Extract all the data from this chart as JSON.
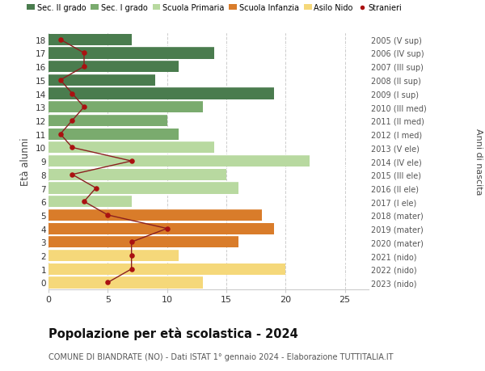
{
  "ages": [
    18,
    17,
    16,
    15,
    14,
    13,
    12,
    11,
    10,
    9,
    8,
    7,
    6,
    5,
    4,
    3,
    2,
    1,
    0
  ],
  "years_labels": [
    "2005 (V sup)",
    "2006 (IV sup)",
    "2007 (III sup)",
    "2008 (II sup)",
    "2009 (I sup)",
    "2010 (III med)",
    "2011 (II med)",
    "2012 (I med)",
    "2013 (V ele)",
    "2014 (IV ele)",
    "2015 (III ele)",
    "2016 (II ele)",
    "2017 (I ele)",
    "2018 (mater)",
    "2019 (mater)",
    "2020 (mater)",
    "2021 (nido)",
    "2022 (nido)",
    "2023 (nido)"
  ],
  "bar_values": [
    7,
    14,
    11,
    9,
    19,
    13,
    10,
    11,
    14,
    22,
    15,
    16,
    7,
    18,
    19,
    16,
    11,
    20,
    13
  ],
  "stranieri_values": [
    1,
    3,
    3,
    1,
    2,
    3,
    2,
    1,
    2,
    7,
    2,
    4,
    3,
    5,
    10,
    7,
    7,
    7,
    5
  ],
  "bar_colors": [
    "#4a7c4e",
    "#4a7c4e",
    "#4a7c4e",
    "#4a7c4e",
    "#4a7c4e",
    "#7aab6e",
    "#7aab6e",
    "#7aab6e",
    "#b8d9a0",
    "#b8d9a0",
    "#b8d9a0",
    "#b8d9a0",
    "#b8d9a0",
    "#d97c2a",
    "#d97c2a",
    "#d97c2a",
    "#f5d87a",
    "#f5d87a",
    "#f5d87a"
  ],
  "legend_labels": [
    "Sec. II grado",
    "Sec. I grado",
    "Scuola Primaria",
    "Scuola Infanzia",
    "Asilo Nido",
    "Stranieri"
  ],
  "legend_colors": [
    "#4a7c4e",
    "#7aab6e",
    "#b8d9a0",
    "#d97c2a",
    "#f5d87a",
    "#aa1111"
  ],
  "stranieri_color": "#aa1111",
  "line_color": "#8b2020",
  "ylabel": "Età alunni",
  "right_ylabel": "Anni di nascita",
  "title": "Popolazione per età scolastica - 2024",
  "subtitle": "COMUNE DI BIANDRATE (NO) - Dati ISTAT 1° gennaio 2024 - Elaborazione TUTTITALIA.IT",
  "xlim": [
    0,
    27
  ],
  "xticks": [
    0,
    5,
    10,
    15,
    20,
    25
  ],
  "background_color": "#ffffff",
  "grid_color": "#cccccc"
}
